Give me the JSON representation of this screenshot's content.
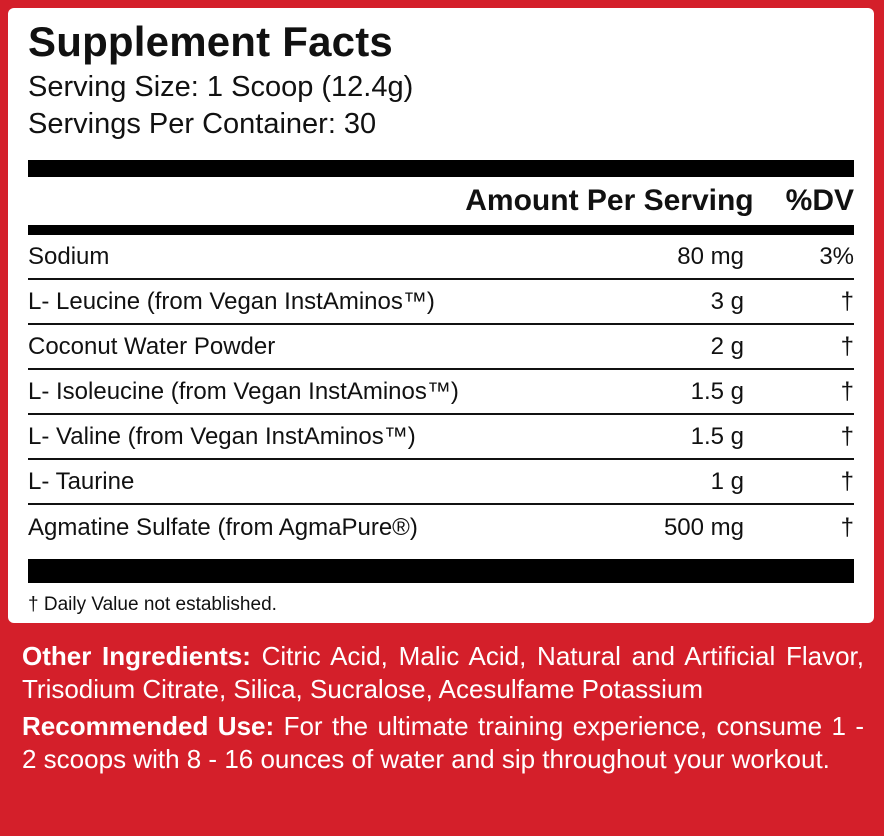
{
  "title": "Supplement Facts",
  "serving_size": "Serving Size: 1 Scoop (12.4g)",
  "servings_per_container": "Servings Per Container: 30",
  "header": {
    "amount_per_serving": "Amount Per Serving",
    "dv": "%DV"
  },
  "rows": [
    {
      "name": "Sodium",
      "amount": "80 mg",
      "dv": "3%"
    },
    {
      "name": "L- Leucine (from Vegan InstAminos™)",
      "amount": "3 g",
      "dv": "†"
    },
    {
      "name": "Coconut Water Powder",
      "amount": "2 g",
      "dv": "†"
    },
    {
      "name": "L- Isoleucine (from Vegan InstAminos™)",
      "amount": "1.5 g",
      "dv": "†"
    },
    {
      "name": "L- Valine (from Vegan InstAminos™)",
      "amount": "1.5 g",
      "dv": "†"
    },
    {
      "name": "L- Taurine",
      "amount": "1 g",
      "dv": "†"
    },
    {
      "name": "Agmatine Sulfate (from AgmaPure®)",
      "amount": "500 mg",
      "dv": "†"
    }
  ],
  "footnote": "† Daily Value not established.",
  "other_ingredients": {
    "label": "Other Ingredients:",
    "text": " Citric Acid, Malic Acid, Natural and Artificial Flavor, Trisodium Citrate, Silica, Sucralose, Acesulfame Potassium"
  },
  "recommended_use": {
    "label": "Recommended Use:",
    "text": " For the ultimate training experience, consume 1 - 2 scoops with 8 - 16 ounces of water and sip throughout your workout."
  },
  "colors": {
    "background": "#d41f2a",
    "panel": "#ffffff",
    "text": "#111111"
  }
}
